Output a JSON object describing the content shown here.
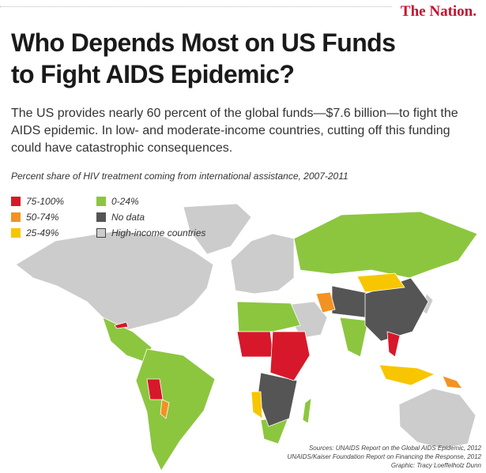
{
  "header": {
    "brand": "The Nation.",
    "title_lines": [
      "Who Depends Most on US Funds",
      "to Fight AIDS Epidemic?"
    ],
    "intro": "The US provides nearly 60 percent of the global funds—$7.6 billion—to fight the AIDS epidemic. In low- and moderate-income countries, cutting off this funding could have catastrophic consequences."
  },
  "map": {
    "caption": "Percent share of HIV treatment coming from international assistance, 2007-2011",
    "legend": [
      {
        "label": "75-100%",
        "color": "#d7182a"
      },
      {
        "label": "50-74%",
        "color": "#f39222"
      },
      {
        "label": "25-49%",
        "color": "#f7c600"
      },
      {
        "label": "0-24%",
        "color": "#8cc63f"
      },
      {
        "label": "No data",
        "color": "#555555"
      },
      {
        "label": "High-income countries",
        "color": "#cccccc"
      }
    ]
  },
  "sources": [
    "Sources: UNAIDS Report on the Global AIDS Epidemic, 2012",
    "UNAIDS/Kaiser Foundation Report on Financing the Response, 2012",
    "Graphic: Tracy Loeffelholz Dunn"
  ]
}
